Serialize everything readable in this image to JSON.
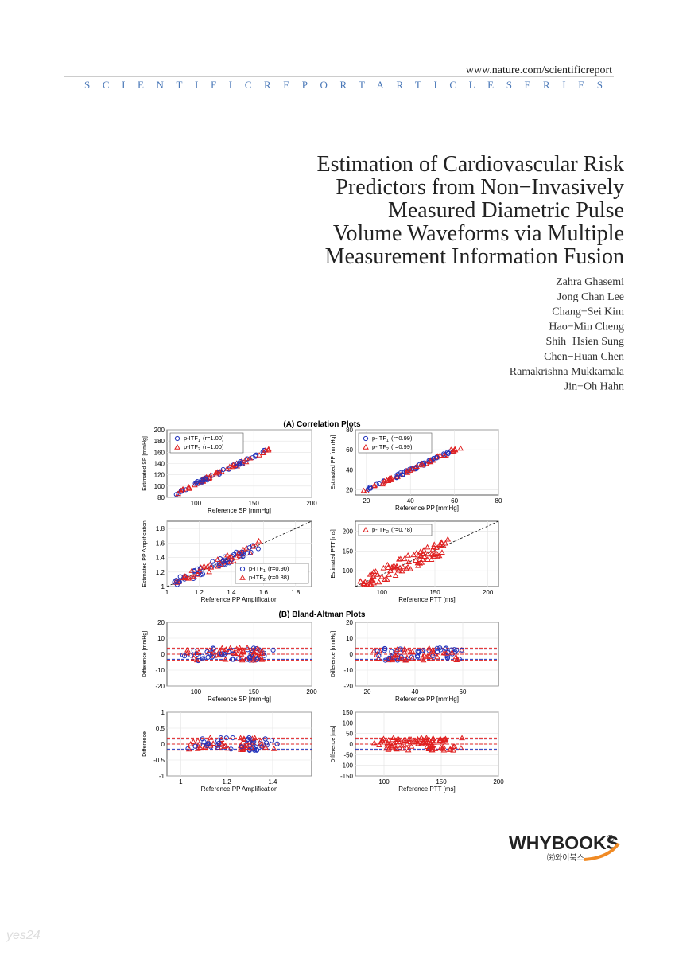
{
  "header": {
    "url": "www.nature.com/scientificreport",
    "series": "SCIENTIFICREPORTARTICLESERIES"
  },
  "title": [
    "Estimation of Cardiovascular Risk",
    "Predictors from Non−Invasively",
    "Measured Diametric Pulse",
    "Volume Waveforms via Multiple",
    "Measurement Information Fusion"
  ],
  "authors": [
    "Zahra Ghasemi",
    "Jong Chan Lee",
    "Chang−Sei Kim",
    "Hao−Min Cheng",
    "Shih−Hsien Sung",
    "Chen−Huan Chen",
    "Ramakrishna Mukkamala",
    "Jin−Oh Hahn"
  ],
  "figure": {
    "section_a": "(A) Correlation Plots",
    "section_b": "(B) Bland-Altman Plots",
    "plots": [
      {
        "kind": "corr",
        "xlabel": "Reference SP [mmHg]",
        "ylabel": "Estimated SP [mmHg]",
        "xlim": [
          75,
          200
        ],
        "ylim": [
          80,
          200
        ],
        "xticks": [
          100,
          150,
          200
        ],
        "yticks": [
          80,
          100,
          120,
          140,
          160,
          180,
          200
        ],
        "legend_corner": "upper-left",
        "legend": [
          {
            "name": "p-ITF",
            "sub": "1",
            "r": "(r=1.00)"
          },
          {
            "name": "p-ITF",
            "sub": "2",
            "r": "(r=1.00)"
          }
        ]
      },
      {
        "kind": "corr",
        "xlabel": "Reference PP [mmHg]",
        "ylabel": "Estimated PP [mmHg]",
        "xlim": [
          15,
          80
        ],
        "ylim": [
          15,
          80
        ],
        "xticks": [
          20,
          40,
          60,
          80
        ],
        "yticks": [
          20,
          40,
          60,
          80
        ],
        "legend_corner": "upper-left",
        "legend": [
          {
            "name": "p-ITF",
            "sub": "1",
            "r": "(r=0.99)"
          },
          {
            "name": "p-ITF",
            "sub": "2",
            "r": "(r=0.99)"
          }
        ]
      },
      {
        "kind": "corr",
        "xlabel": "Reference PP Amplification",
        "ylabel": "Estimated PP Amplification",
        "xlim": [
          1,
          1.9
        ],
        "ylim": [
          1,
          1.9
        ],
        "xticks": [
          1,
          1.2,
          1.4,
          1.6,
          1.8
        ],
        "yticks": [
          1,
          1.2,
          1.4,
          1.6,
          1.8
        ],
        "legend_corner": "lower-right",
        "legend": [
          {
            "name": "p-ITF",
            "sub": "1",
            "r": "(r=0.90)"
          },
          {
            "name": "p-ITF",
            "sub": "2",
            "r": "(r=0.88)"
          }
        ]
      },
      {
        "kind": "corr",
        "xlabel": "Reference PTT [ms]",
        "ylabel": "Estimated PTT [ms]",
        "xlim": [
          75,
          210
        ],
        "ylim": [
          60,
          225
        ],
        "xticks": [
          100,
          150,
          200
        ],
        "yticks": [
          100,
          150,
          200
        ],
        "legend_corner": "upper-left",
        "legend": [
          {
            "name": "p-ITF",
            "sub": "2",
            "r": "(r=0.78)"
          }
        ]
      },
      {
        "kind": "ba",
        "xlabel": "Reference SP [mmHg]",
        "ylabel": "Difference [mmHg]",
        "xlim": [
          75,
          200
        ],
        "ylim": [
          -20,
          20
        ],
        "xticks": [
          100,
          150,
          200
        ],
        "yticks": [
          -20,
          -10,
          0,
          10,
          20
        ]
      },
      {
        "kind": "ba",
        "xlabel": "Reference PP [mmHg]",
        "ylabel": "Difference [mmHg]",
        "xlim": [
          15,
          75
        ],
        "ylim": [
          -20,
          20
        ],
        "xticks": [
          20,
          40,
          60
        ],
        "yticks": [
          -20,
          -10,
          0,
          10,
          20
        ]
      },
      {
        "kind": "ba",
        "xlabel": "Reference PP Amplification",
        "ylabel": "Difference",
        "xlim": [
          0.94,
          1.57
        ],
        "ylim": [
          -1,
          1
        ],
        "xticks": [
          1,
          1.2,
          1.4
        ],
        "yticks": [
          -1,
          -0.5,
          0,
          0.5,
          1
        ]
      },
      {
        "kind": "ba",
        "xlabel": "Reference PTT [ms]",
        "ylabel": "Difference [ms]",
        "xlim": [
          75,
          200
        ],
        "ylim": [
          -150,
          150
        ],
        "xticks": [
          100,
          150,
          200
        ],
        "yticks": [
          -150,
          -100,
          -50,
          0,
          50,
          100,
          150
        ]
      }
    ]
  },
  "publisher": {
    "logo": "WHYBOOKS",
    "mark": "®",
    "korean": "㈸와이북스"
  },
  "watermark": "yes24"
}
